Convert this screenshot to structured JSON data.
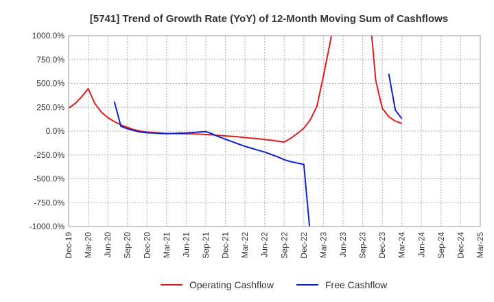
{
  "chart_data": {
    "type": "line",
    "title": "[5741]  Trend of Growth Rate (YoY) of 12-Month Moving Sum of Cashflows",
    "xlabel": "",
    "ylabel": "",
    "ylim": [
      -1000,
      1000
    ],
    "yticks": [
      1000,
      750,
      500,
      250,
      0,
      -250,
      -500,
      -750,
      -1000
    ],
    "ytick_labels": [
      "1000.0%",
      "750.0%",
      "500.0%",
      "250.0%",
      "0.0%",
      "-250.0%",
      "-500.0%",
      "-750.0%",
      "-1000.0%"
    ],
    "x_labels": [
      "Dec-19",
      "Mar-20",
      "Jun-20",
      "Sep-20",
      "Dec-20",
      "Mar-21",
      "Jun-21",
      "Sep-21",
      "Dec-21",
      "Mar-22",
      "Jun-22",
      "Sep-22",
      "Dec-22",
      "Mar-23",
      "Jun-23",
      "Sep-23",
      "Dec-23",
      "Mar-24",
      "Jun-24",
      "Sep-24",
      "Dec-24",
      "Mar-25"
    ],
    "x_months": [
      "2019-12",
      "2020-01",
      "2020-02",
      "2020-03",
      "2020-04",
      "2020-05",
      "2020-06",
      "2020-07",
      "2020-08",
      "2020-09",
      "2020-10",
      "2020-11",
      "2020-12",
      "2021-01",
      "2021-02",
      "2021-03",
      "2021-04",
      "2021-05",
      "2021-06",
      "2021-07",
      "2021-08",
      "2021-09",
      "2021-10",
      "2021-11",
      "2021-12",
      "2022-01",
      "2022-02",
      "2022-03",
      "2022-04",
      "2022-05",
      "2022-06",
      "2022-07",
      "2022-08",
      "2022-09",
      "2022-10",
      "2022-11",
      "2022-12",
      "2023-01",
      "2023-02",
      "2023-03",
      "2023-04",
      "2023-05",
      "2023-06",
      "2023-07",
      "2023-08",
      "2023-09",
      "2023-10",
      "2023-11",
      "2023-12",
      "2024-01",
      "2024-02",
      "2024-03",
      "2024-04",
      "2024-05",
      "2024-06",
      "2024-07",
      "2024-08",
      "2024-09",
      "2024-10",
      "2024-11",
      "2024-12",
      "2025-01",
      "2025-02",
      "2025-03"
    ],
    "grid": true,
    "legend_position": "bottom",
    "series": [
      {
        "name": "Operating Cashflow",
        "color": "#e31a1c",
        "points": [
          [
            "2019-12",
            240
          ],
          [
            "2020-01",
            290
          ],
          [
            "2020-02",
            360
          ],
          [
            "2020-03",
            445
          ],
          [
            "2020-04",
            290
          ],
          [
            "2020-05",
            200
          ],
          [
            "2020-06",
            140
          ],
          [
            "2020-07",
            100
          ],
          [
            "2020-08",
            65
          ],
          [
            "2020-09",
            40
          ],
          [
            "2020-10",
            15
          ],
          [
            "2020-11",
            0
          ],
          [
            "2020-12",
            -10
          ],
          [
            "2021-01",
            -15
          ],
          [
            "2021-02",
            -20
          ],
          [
            "2021-03",
            -25
          ],
          [
            "2021-04",
            -25
          ],
          [
            "2021-05",
            -28
          ],
          [
            "2021-06",
            -28
          ],
          [
            "2021-07",
            -30
          ],
          [
            "2021-08",
            -32
          ],
          [
            "2021-09",
            -35
          ],
          [
            "2021-10",
            -40
          ],
          [
            "2021-11",
            -45
          ],
          [
            "2021-12",
            -50
          ],
          [
            "2022-01",
            -55
          ],
          [
            "2022-02",
            -60
          ],
          [
            "2022-03",
            -68
          ],
          [
            "2022-04",
            -75
          ],
          [
            "2022-05",
            -80
          ],
          [
            "2022-06",
            -88
          ],
          [
            "2022-07",
            -95
          ],
          [
            "2022-08",
            -105
          ],
          [
            "2022-09",
            -115
          ],
          [
            "2022-10",
            -75
          ],
          [
            "2022-11",
            -25
          ],
          [
            "2022-12",
            30
          ],
          [
            "2023-01",
            120
          ],
          [
            "2023-02",
            260
          ],
          [
            "2023-03",
            580
          ],
          [
            "2023-04",
            920
          ],
          [
            "2023-05",
            1300
          ],
          null,
          [
            "2023-10",
            1300
          ],
          [
            "2023-11",
            530
          ],
          [
            "2023-12",
            240
          ],
          [
            "2024-01",
            150
          ],
          [
            "2024-02",
            105
          ],
          [
            "2024-03",
            80
          ]
        ]
      },
      {
        "name": "Free Cashflow",
        "color": "#0a1fd6",
        "points": [
          [
            "2020-07",
            310
          ],
          [
            "2020-08",
            50
          ],
          [
            "2020-09",
            25
          ],
          [
            "2020-10",
            5
          ],
          [
            "2020-11",
            -10
          ],
          [
            "2020-12",
            -18
          ],
          [
            "2021-01",
            -20
          ],
          [
            "2021-02",
            -25
          ],
          [
            "2021-03",
            -27
          ],
          [
            "2021-04",
            -25
          ],
          [
            "2021-05",
            -22
          ],
          [
            "2021-06",
            -20
          ],
          [
            "2021-07",
            -15
          ],
          [
            "2021-08",
            -10
          ],
          [
            "2021-09",
            -5
          ],
          [
            "2021-10",
            -30
          ],
          [
            "2021-11",
            -60
          ],
          [
            "2021-12",
            -85
          ],
          [
            "2022-01",
            -110
          ],
          [
            "2022-02",
            -135
          ],
          [
            "2022-03",
            -160
          ],
          [
            "2022-04",
            -180
          ],
          [
            "2022-05",
            -200
          ],
          [
            "2022-06",
            -220
          ],
          [
            "2022-07",
            -245
          ],
          [
            "2022-08",
            -270
          ],
          [
            "2022-09",
            -300
          ],
          [
            "2022-10",
            -320
          ],
          [
            "2022-11",
            -335
          ],
          [
            "2022-12",
            -350
          ],
          [
            "2023-01",
            -1100
          ],
          null,
          [
            "2024-01",
            600
          ],
          [
            "2024-02",
            220
          ],
          [
            "2024-03",
            130
          ]
        ]
      }
    ]
  }
}
